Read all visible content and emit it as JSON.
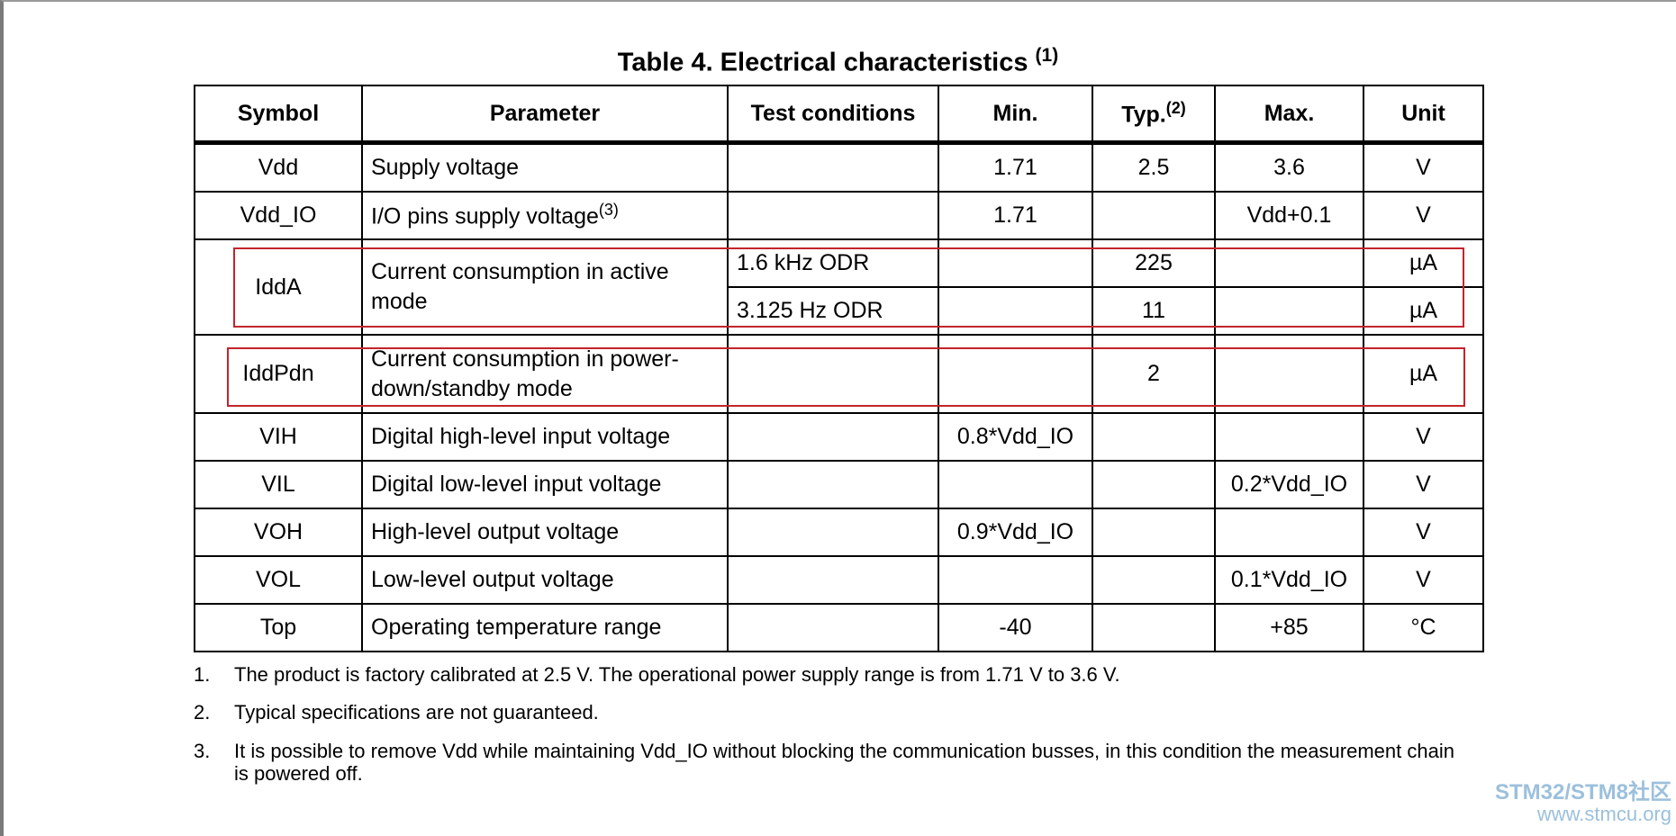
{
  "title": {
    "text": "Table 4. Electrical characteristics",
    "sup": "(1)"
  },
  "table": {
    "header": [
      "Symbol",
      "Parameter",
      "Test conditions",
      "Min.",
      {
        "text": "Typ.",
        "sup": "(2)"
      },
      "Max.",
      "Unit"
    ],
    "rows": [
      [
        "Vdd",
        "Supply voltage",
        null,
        "1.71",
        "2.5",
        "3.6",
        "V"
      ],
      [
        "Vdd_IO",
        {
          "text": "I/O pins supply voltage",
          "sup": "(3)"
        },
        null,
        "1.71",
        null,
        "Vdd+0.1",
        "V"
      ],
      [
        "IddA",
        "Current consumption in active mode",
        "1.6 kHz ODR",
        null,
        "225",
        null,
        "µA"
      ],
      [
        null,
        null,
        "3.125 Hz ODR",
        null,
        "11",
        null,
        "µA"
      ],
      [
        "IddPdn",
        "Current consumption in power-down/standby mode",
        null,
        null,
        "2",
        null,
        "µA"
      ],
      [
        "VIH",
        "Digital high-level input voltage",
        null,
        "0.8*Vdd_IO",
        null,
        null,
        "V"
      ],
      [
        "VIL",
        "Digital low-level input voltage",
        null,
        null,
        null,
        "0.2*Vdd_IO",
        "V"
      ],
      [
        "VOH",
        "High-level output voltage",
        null,
        "0.9*Vdd_IO",
        null,
        null,
        "V"
      ],
      [
        "VOL",
        "Low-level output voltage",
        null,
        null,
        null,
        "0.1*Vdd_IO",
        "V"
      ],
      [
        "Top",
        "Operating temperature range",
        null,
        "-40",
        null,
        "+85",
        "°C"
      ]
    ]
  },
  "footnotes": [
    {
      "number": "1.",
      "text": "The product is factory calibrated at 2.5 V. The operational power supply range is from 1.71 V to 3.6 V."
    },
    {
      "number": "2.",
      "text": "Typical specifications are not guaranteed."
    },
    {
      "number": "3.",
      "text": "It is possible to remove Vdd while maintaining Vdd_IO without blocking the communication busses, in this condition the measurement chain is powered off."
    }
  ],
  "watermark": {
    "brand": "STM32/STM8社区",
    "url": "www.stmcu.org"
  }
}
